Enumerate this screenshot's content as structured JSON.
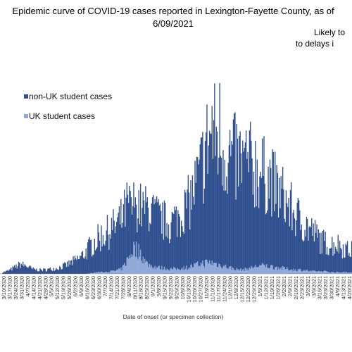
{
  "chart_data": {
    "type": "bar",
    "stacked": true,
    "title_line1": "Epidemic curve of COVID-19 cases reported in Lexington-Fayette County, as of",
    "title_line2": "6/09/2021",
    "annotation_line1": "Likely to",
    "annotation_line2": "to delays i",
    "xlabel": "Date of onset (or specimen collection)",
    "ylabel": "",
    "legend_position": "top-left",
    "colors": {
      "non_uk": "#2f4f8f",
      "uk": "#8fa8d8"
    },
    "series": [
      {
        "name": "non-UK student cases",
        "key": "non_uk"
      },
      {
        "name": "UK student cases",
        "key": "uk"
      }
    ],
    "categories": [
      "3/10/2020",
      "3/17/2020",
      "3/24/2020",
      "3/31/2020",
      "4/7/2020",
      "4/14/2020",
      "4/21/2020",
      "4/28/2020",
      "5/5/2020",
      "5/12/2020",
      "5/19/2020",
      "5/26/2020",
      "6/2/2020",
      "6/9/2020",
      "6/16/2020",
      "6/23/2020",
      "6/30/2020",
      "7/7/2020",
      "7/14/2020",
      "7/21/2020",
      "7/28/2020",
      "8/4/2020",
      "8/11/2020",
      "8/18/2020",
      "8/25/2020",
      "9/1/2020",
      "9/8/2020",
      "9/15/2020",
      "9/22/2020",
      "9/29/2020",
      "10/6/2020",
      "10/13/2020",
      "10/20/2020",
      "10/27/2020",
      "11/3/2020",
      "11/10/2020",
      "11/17/2020",
      "11/24/2020",
      "12/1/2020",
      "12/8/2020",
      "12/15/2020",
      "12/22/2020",
      "12/29/2020",
      "1/5/2021",
      "1/12/2021",
      "1/19/2021",
      "1/26/2021",
      "2/2/2021",
      "2/9/2021",
      "2/16/2021",
      "2/23/2021",
      "3/2/2021",
      "3/9/2021",
      "3/16/2021",
      "3/23/2021",
      "3/30/2021",
      "4/6/2021",
      "4/13/2021",
      "4/20/2021"
    ],
    "weekly_non_uk": [
      2,
      4,
      8,
      12,
      10,
      6,
      5,
      5,
      6,
      7,
      9,
      12,
      16,
      20,
      28,
      36,
      42,
      48,
      52,
      56,
      62,
      70,
      55,
      58,
      68,
      70,
      64,
      60,
      58,
      62,
      70,
      80,
      92,
      112,
      140,
      165,
      160,
      150,
      140,
      138,
      135,
      132,
      128,
      120,
      112,
      110,
      98,
      90,
      80,
      70,
      62,
      56,
      50,
      42,
      36,
      34,
      36,
      32,
      28
    ],
    "weekly_uk": [
      0,
      0,
      0,
      0,
      0,
      0,
      0,
      0,
      0,
      0,
      0,
      0,
      0,
      0,
      0,
      1,
      2,
      2,
      3,
      4,
      6,
      18,
      32,
      28,
      14,
      10,
      8,
      7,
      6,
      6,
      7,
      8,
      10,
      12,
      14,
      14,
      12,
      10,
      8,
      6,
      5,
      6,
      8,
      10,
      10,
      9,
      8,
      7,
      6,
      5,
      5,
      4,
      3,
      3,
      3,
      2,
      2,
      2,
      2
    ],
    "peak_daily_total": 240
  }
}
